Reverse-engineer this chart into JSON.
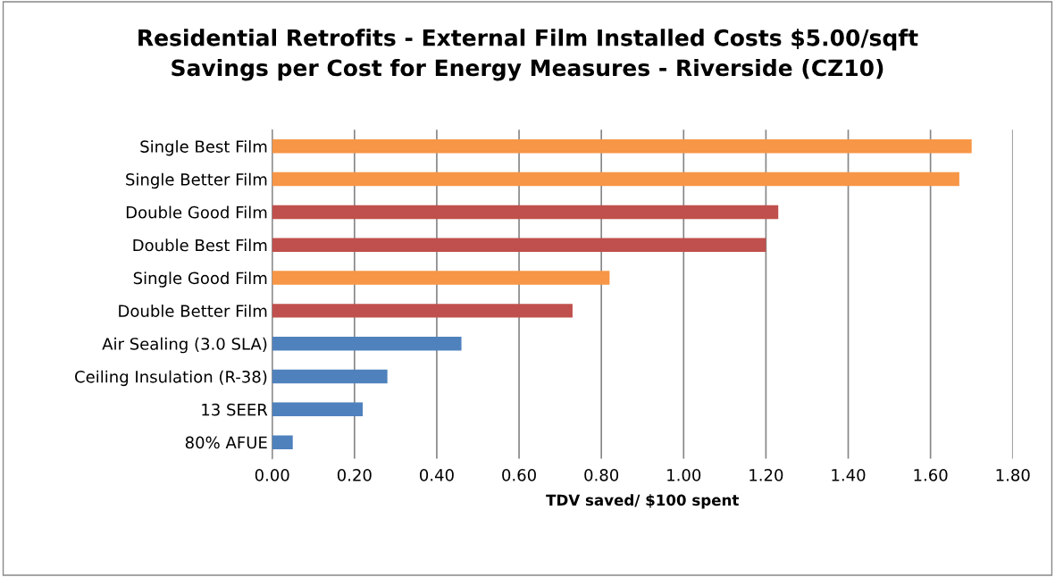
{
  "chart_data": {
    "type": "bar",
    "orientation": "horizontal",
    "title": "Residential Retrofits - External Film Installed Costs $5.00/sqft\nSavings per Cost for Energy Measures - Riverside (CZ10)",
    "xlabel": "TDV saved/ $100 spent",
    "categories": [
      "Single Best Film",
      "Single Better Film",
      "Double Good Film",
      "Double Best Film",
      "Single Good Film",
      "Double Better Film",
      "Air Sealing (3.0 SLA)",
      "Ceiling Insulation (R-38)",
      "13 SEER",
      "80% AFUE"
    ],
    "values": [
      1.7,
      1.67,
      1.23,
      1.2,
      0.82,
      0.73,
      0.46,
      0.28,
      0.22,
      0.05
    ],
    "colors": [
      "#f79646",
      "#f79646",
      "#c0504d",
      "#c0504d",
      "#f79646",
      "#c0504d",
      "#4f81bd",
      "#4f81bd",
      "#4f81bd",
      "#4f81bd"
    ],
    "xlim": [
      0,
      1.8
    ],
    "xticks": [
      {
        "value": 0,
        "label": "0.00"
      },
      {
        "value": 0.2,
        "label": "0.20"
      },
      {
        "value": 0.4,
        "label": "0.40"
      },
      {
        "value": 0.6,
        "label": "0.60"
      },
      {
        "value": 0.8,
        "label": "0.80"
      },
      {
        "value": 1.0,
        "label": "1.00"
      },
      {
        "value": 1.2,
        "label": "1.20"
      },
      {
        "value": 1.4,
        "label": "1.40"
      },
      {
        "value": 1.6,
        "label": "1.60"
      },
      {
        "value": 1.8,
        "label": "1.80"
      }
    ],
    "grid": "x",
    "legend": false
  }
}
